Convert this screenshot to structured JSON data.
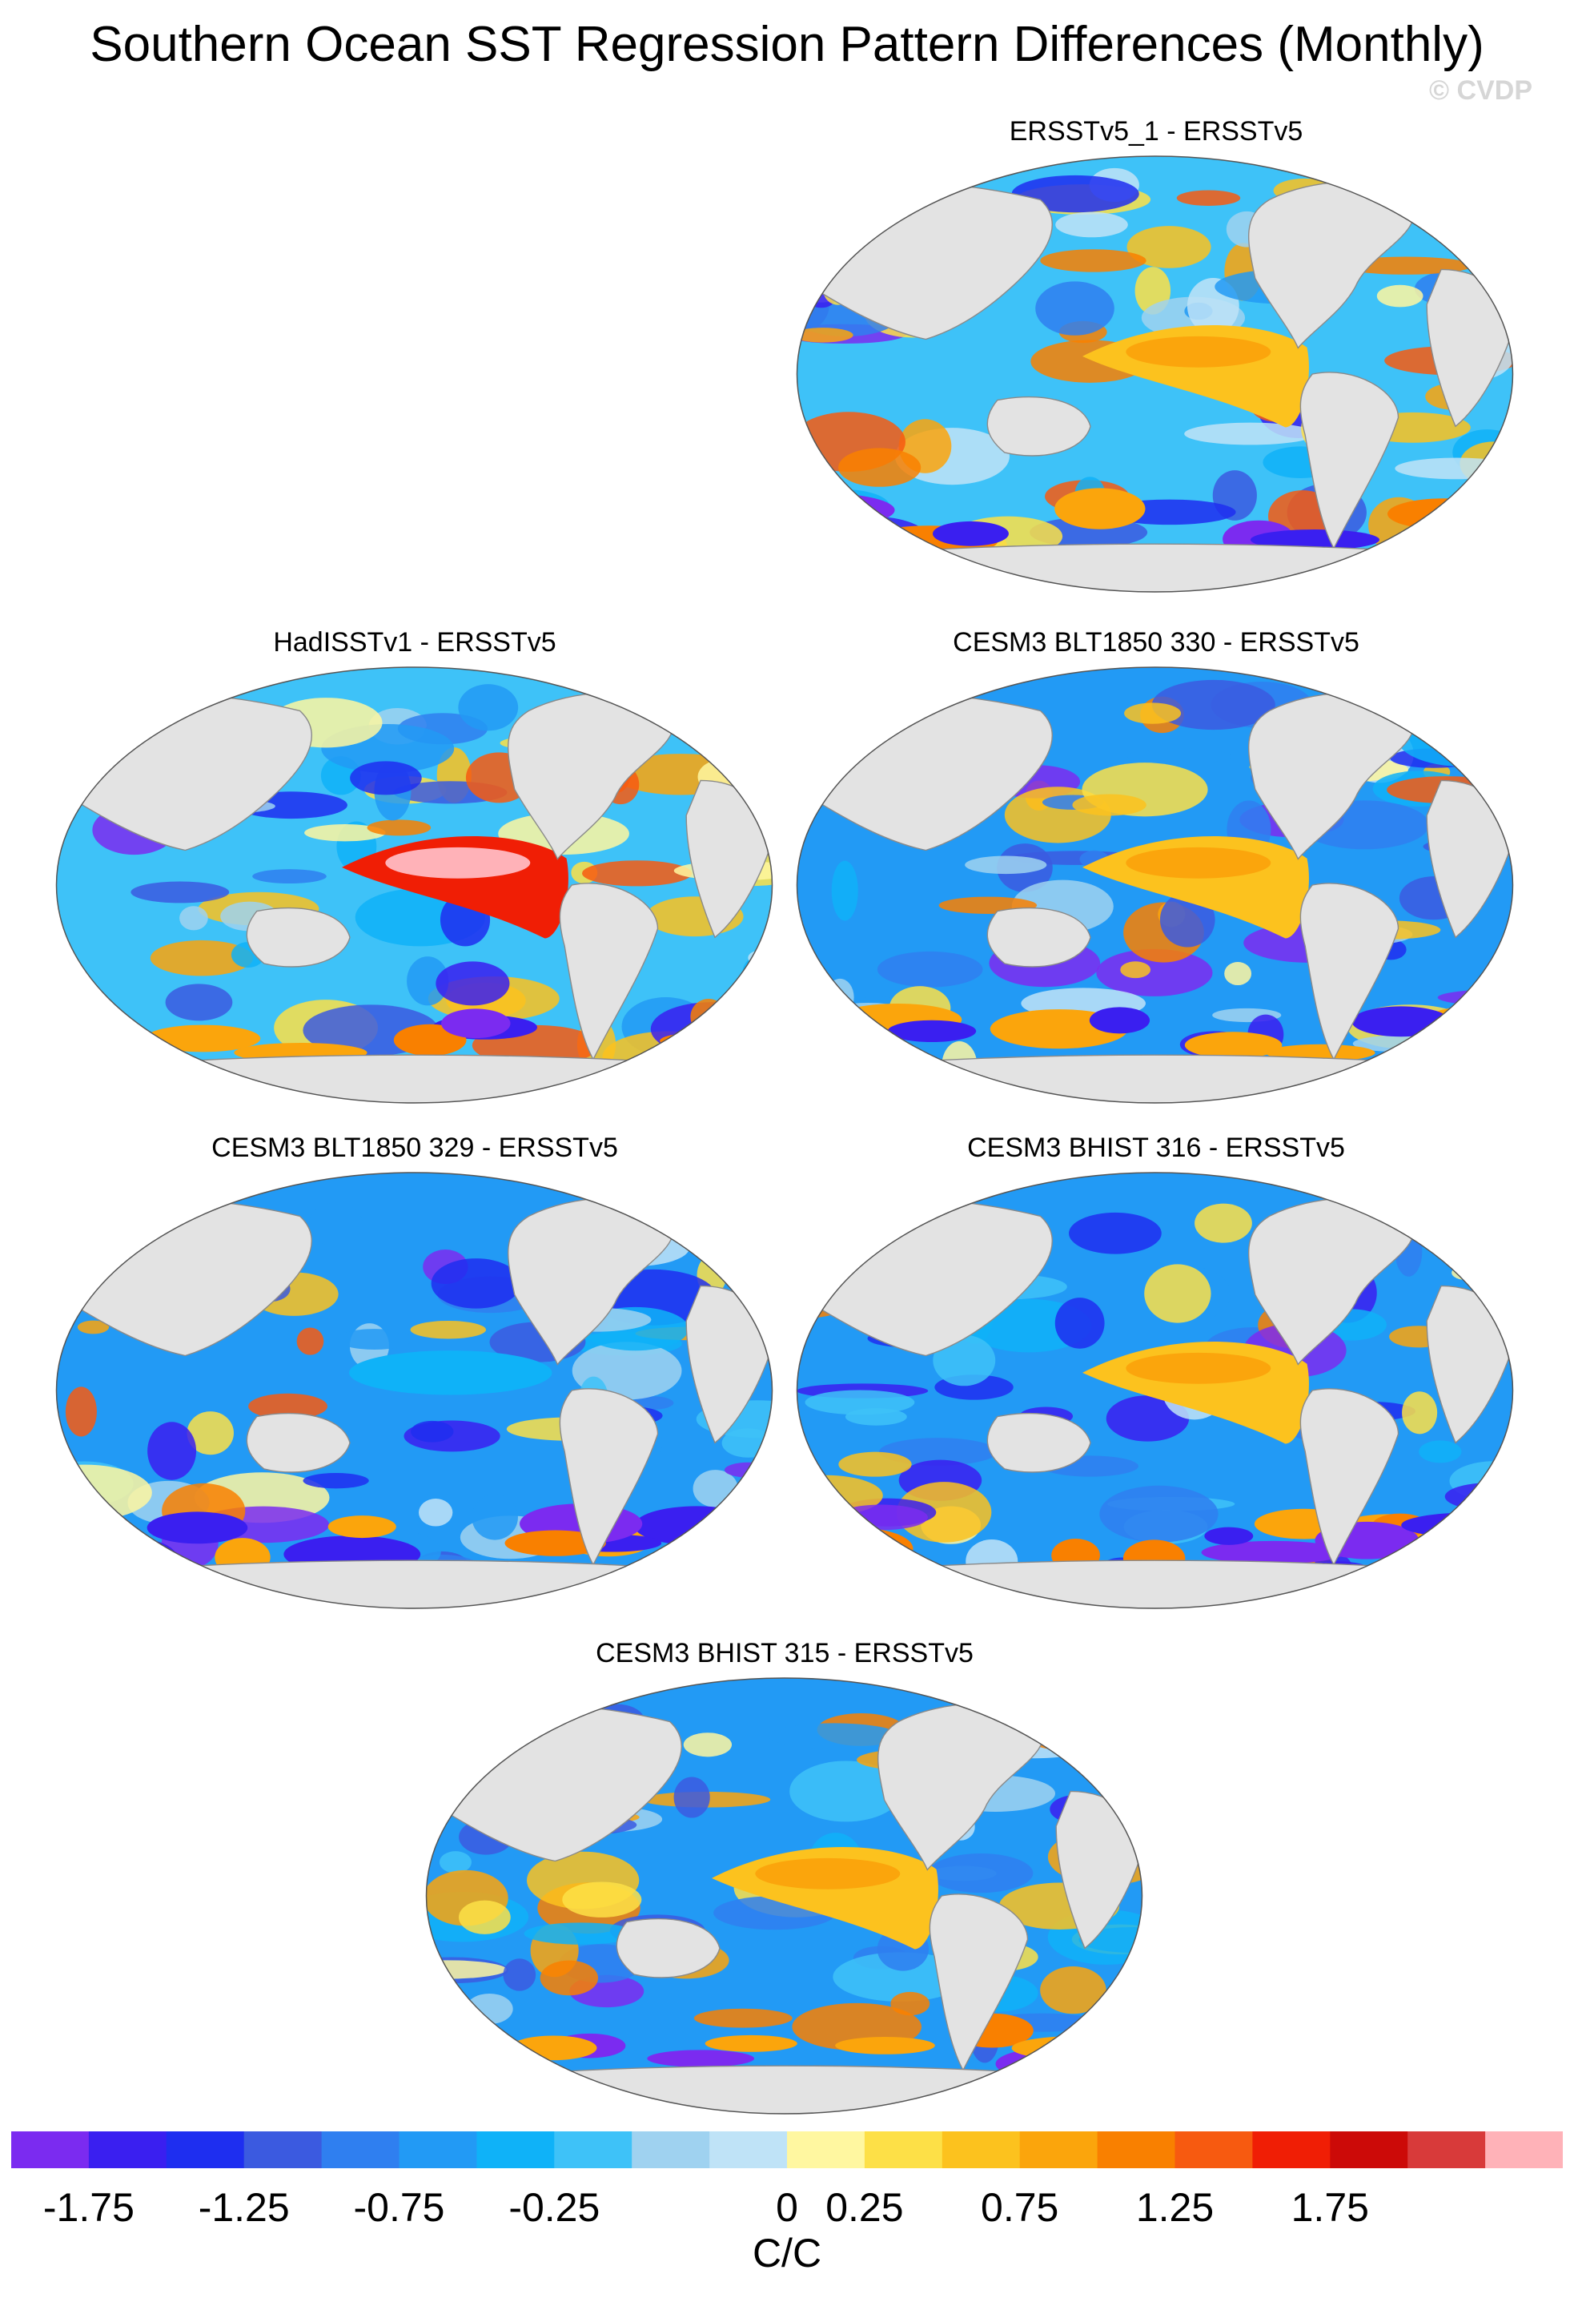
{
  "title": "Southern Ocean SST Regression Pattern Differences (Monthly)",
  "watermark": "© CVDP",
  "panels": [
    {
      "title": "ERSSTv5_1 - ERSSTv5",
      "dominant": "mixed",
      "tropical_pacific": "warm"
    },
    {
      "title": "HadISSTv1 - ERSSTv5",
      "dominant": "mixed",
      "tropical_pacific": "very warm"
    },
    {
      "title": "CESM3 BLT1850 330 - ERSSTv5",
      "dominant": "cool",
      "tropical_pacific": "warm"
    },
    {
      "title": "CESM3 BLT1850 329 - ERSSTv5",
      "dominant": "cool",
      "tropical_pacific": "cool"
    },
    {
      "title": "CESM3 BHIST 316 - ERSSTv5",
      "dominant": "cool",
      "tropical_pacific": "warm"
    },
    {
      "title": "CESM3 BHIST 315 - ERSSTv5",
      "dominant": "cool",
      "tropical_pacific": "warm"
    }
  ],
  "colorbar": {
    "unit": "C/C",
    "colors": [
      "#7b2bf0",
      "#3a1ff0",
      "#1e2ef0",
      "#3b5ae0",
      "#2f7ff0",
      "#229af5",
      "#0fb2f8",
      "#3ec2f8",
      "#9fd2f0",
      "#bfe3f7",
      "#fff7a0",
      "#fde047",
      "#fcc21e",
      "#fba50c",
      "#f98000",
      "#f75a10",
      "#f01e05",
      "#cc0a08",
      "#d83a3a",
      "#ffb2b8"
    ],
    "ticks": [
      "-1.75",
      "-1.25",
      "-0.75",
      "-0.25",
      "0",
      "0.25",
      "0.75",
      "1.25",
      "1.75"
    ],
    "tick_values": [
      -1.75,
      -1.25,
      -0.75,
      -0.25,
      0,
      0.25,
      0.75,
      1.25,
      1.75
    ]
  }
}
